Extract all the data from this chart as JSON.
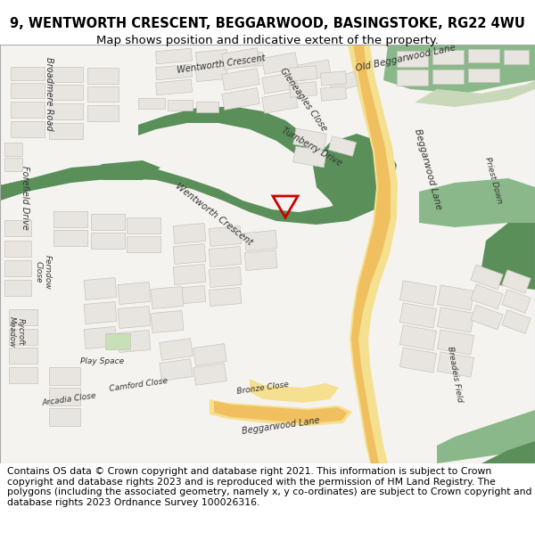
{
  "title_line1": "9, WENTWORTH CRESCENT, BEGGARWOOD, BASINGSTOKE, RG22 4WU",
  "title_line2": "Map shows position and indicative extent of the property.",
  "footer_text": "Contains OS data © Crown copyright and database right 2021. This information is subject to Crown copyright and database rights 2023 and is reproduced with the permission of HM Land Registry. The polygons (including the associated geometry, namely x, y co-ordinates) are subject to Crown copyright and database rights 2023 Ordnance Survey 100026316.",
  "map_bg": "#f5f3f0",
  "green_dark": "#5a8f5a",
  "green_light": "#8ab88a",
  "road_yellow": "#f0c060",
  "road_yellow_border": "#e8a820",
  "building_fill": "#e8e5e0",
  "building_edge": "#c8c4bc",
  "plot_outline": "#cc0000",
  "white_bg": "#ffffff",
  "title_fontsize": 10.5,
  "subtitle_fontsize": 9.5,
  "footer_fontsize": 7.8,
  "text_color": "#333333"
}
